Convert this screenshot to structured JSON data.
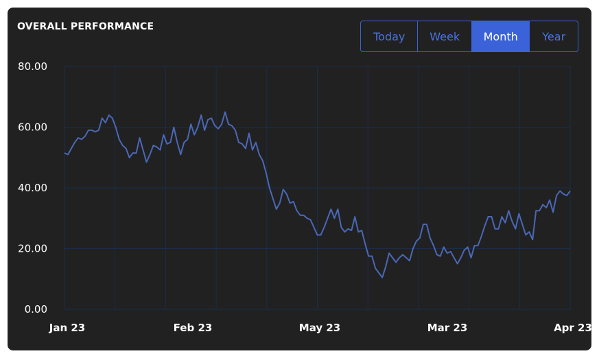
{
  "header": {
    "title": "OVERALL PERFORMANCE"
  },
  "range_tabs": [
    {
      "label": "Today",
      "active": false
    },
    {
      "label": "Week",
      "active": false
    },
    {
      "label": "Month",
      "active": true
    },
    {
      "label": "Year",
      "active": false
    }
  ],
  "colors": {
    "background": "#212121",
    "accent": "#3b62d8",
    "line": "#4a68b8",
    "grid": "#1a2d4a"
  },
  "chart_data": {
    "type": "line",
    "title": "OVERALL PERFORMANCE",
    "ylim": [
      0,
      80
    ],
    "y_ticks": [
      0,
      20,
      40,
      60,
      80
    ],
    "y_tick_labels": [
      "0.00",
      "20.00",
      "40.00",
      "60.00",
      "80.00"
    ],
    "x_tick_labels": [
      "Jan 23",
      "Feb 23",
      "May 23",
      "Mar 23",
      "Apr 23"
    ],
    "grid": true,
    "legend": "none",
    "series": [
      {
        "values": [
          51.5,
          51,
          53,
          55,
          56.5,
          56,
          57,
          59,
          59,
          58.5,
          59,
          63,
          61.5,
          64,
          63,
          60,
          56,
          54,
          53,
          50,
          51.5,
          51.5,
          56.5,
          52.5,
          48.5,
          51,
          54,
          53.5,
          52.5,
          57.5,
          54.5,
          55,
          60,
          55,
          51,
          55,
          56,
          61,
          57.5,
          60,
          64,
          59,
          62.5,
          63,
          60.5,
          59.5,
          61,
          65,
          61,
          60.5,
          59,
          55,
          54.5,
          53,
          58,
          52.5,
          55,
          51,
          49,
          45,
          40,
          36.5,
          33,
          35,
          39.5,
          38,
          35,
          35.5,
          32.5,
          31,
          31,
          30,
          29.5,
          27,
          24.5,
          24.5,
          27,
          30,
          33,
          30,
          33,
          27,
          25.5,
          26.5,
          26,
          30.5,
          25.5,
          26,
          21.5,
          17.5,
          17.5,
          13.5,
          12,
          10.5,
          14,
          18.5,
          17,
          15.5,
          17,
          18,
          17,
          16,
          20,
          22.5,
          23.5,
          28,
          28,
          23.5,
          21,
          18,
          17.5,
          20.5,
          18.5,
          19,
          17,
          15,
          17,
          19.5,
          20.5,
          17,
          21,
          21,
          24,
          27.5,
          30.5,
          30.5,
          26.5,
          26.5,
          30.5,
          28.5,
          32.5,
          29,
          26.5,
          31.5,
          28,
          24.5,
          25.5,
          23,
          32.5,
          32.5,
          34.5,
          33.5,
          36,
          32,
          37.5,
          39,
          38,
          37.5,
          39
        ]
      }
    ]
  }
}
